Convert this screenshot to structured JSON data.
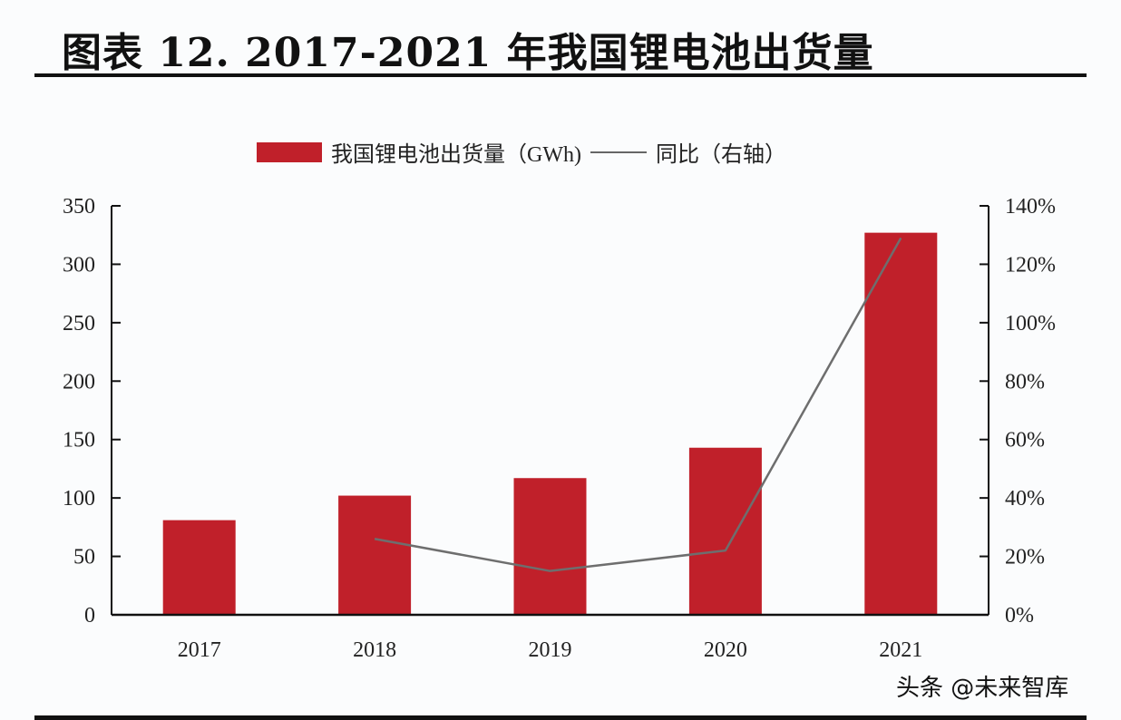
{
  "title": "图表 12. 2017-2021 年我国锂电池出货量",
  "legend": {
    "bar_label": "我国锂电池出货量",
    "bar_unit": "（GWh)",
    "line_label": "同比（右轴）"
  },
  "watermark": "头条 @未来智库",
  "colors": {
    "bar": "#c0202a",
    "line": "#6e6e6e",
    "axis": "#111111"
  },
  "chart_data": {
    "type": "bar",
    "title": "图表 12. 2017-2021 年我国锂电池出货量",
    "categories": [
      "2017",
      "2018",
      "2019",
      "2020",
      "2021"
    ],
    "series": [
      {
        "name": "我国锂电池出货量（GWh)",
        "type": "bar",
        "axis": "left",
        "values": [
          81,
          102,
          117,
          143,
          327
        ]
      },
      {
        "name": "同比（右轴）",
        "type": "line",
        "axis": "right",
        "values": [
          null,
          26,
          15,
          22,
          129
        ]
      }
    ],
    "left_axis": {
      "min": 0,
      "max": 350,
      "ticks": [
        "0",
        "50",
        "100",
        "150",
        "200",
        "250",
        "300",
        "350"
      ]
    },
    "right_axis": {
      "min": 0,
      "max": 140,
      "ticks": [
        "0%",
        "20%",
        "40%",
        "60%",
        "80%",
        "100%",
        "120%",
        "140%"
      ]
    },
    "xlabel": "",
    "ylabel": "",
    "grid": false,
    "legend_position": "top-center"
  }
}
